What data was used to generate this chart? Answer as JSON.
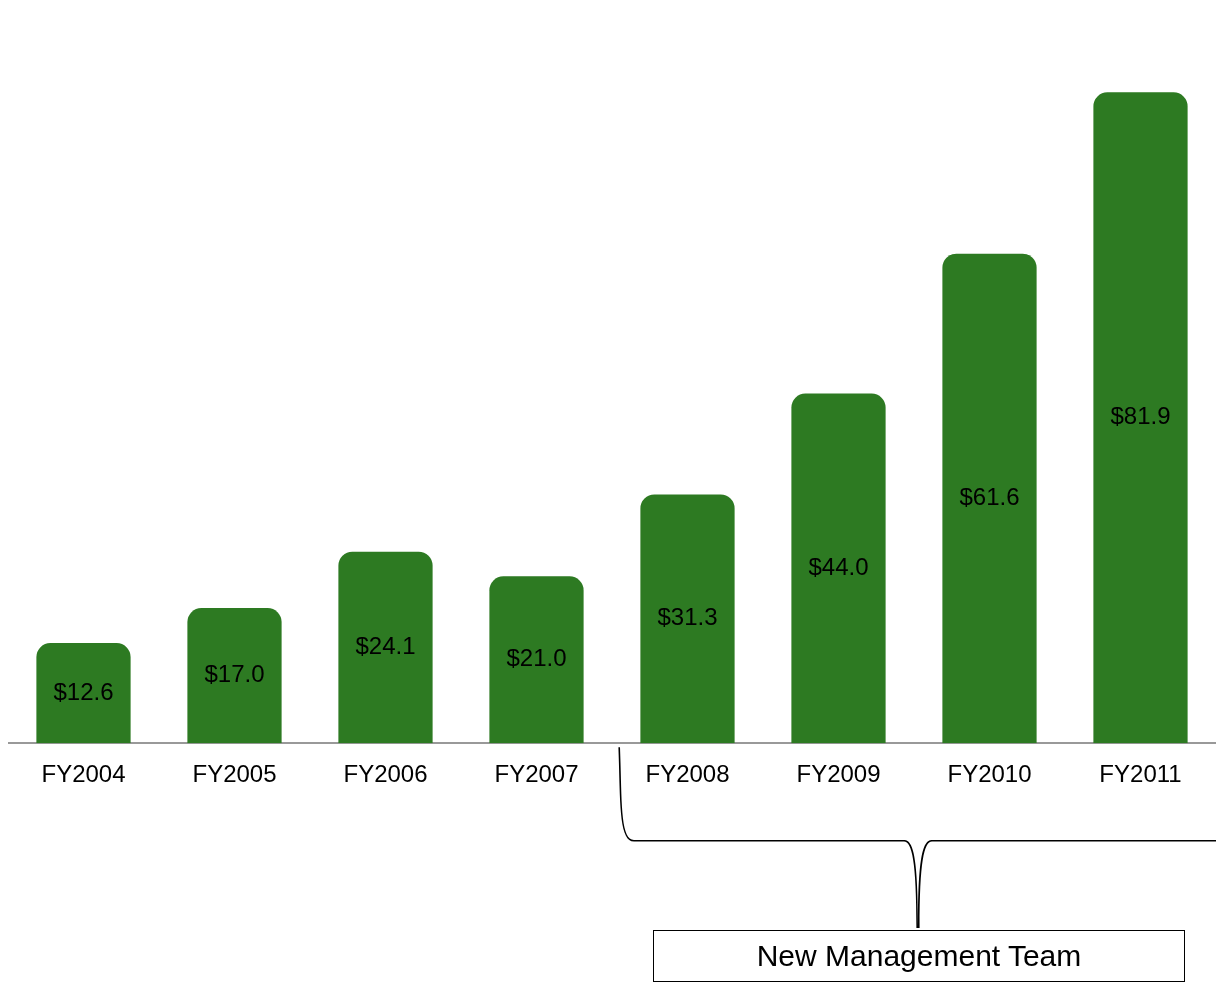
{
  "chart_data": {
    "type": "bar",
    "categories": [
      "FY2004",
      "FY2005",
      "FY2006",
      "FY2007",
      "FY2008",
      "FY2009",
      "FY2010",
      "FY2011"
    ],
    "values": [
      12.6,
      17.0,
      24.1,
      21.0,
      31.3,
      44.0,
      61.6,
      81.9
    ],
    "value_labels": [
      "$12.6",
      "$17.0",
      "$24.1",
      "$21.0",
      "$31.3",
      "$44.0",
      "$61.6",
      "$81.9"
    ],
    "color": "#2d7a22",
    "annotations": [
      "New Management Team"
    ]
  }
}
